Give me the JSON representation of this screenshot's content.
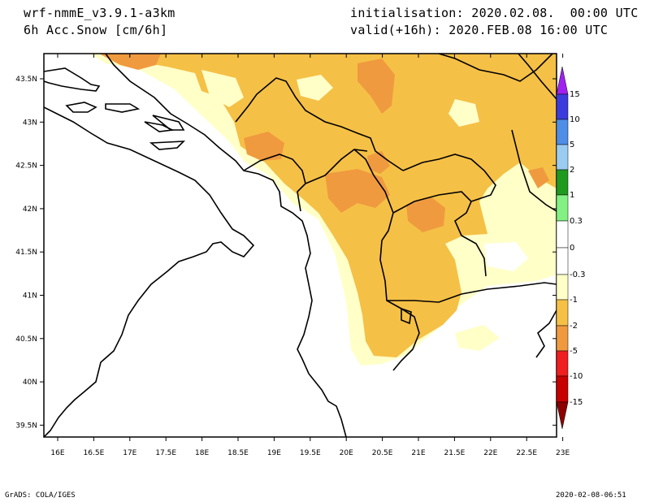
{
  "header": {
    "model": "wrf-nmmE_v3.9.1-a3km",
    "field": "6h Acc.Snow [cm/6h]",
    "init": "initialisation: 2020.02.08.  00:00 UTC",
    "valid": "valid(+16h): 2020.FEB.08 16:00 UTC"
  },
  "footer": {
    "credit": "GrADS: COLA/IGES",
    "timestamp": "2020-02-08-06:51"
  },
  "map": {
    "lon_ticks": [
      "16E",
      "16.5E",
      "17E",
      "17.5E",
      "18E",
      "18.5E",
      "19E",
      "19.5E",
      "20E",
      "20.5E",
      "21E",
      "21.5E",
      "22E",
      "22.5E",
      "23E"
    ],
    "lat_ticks": [
      "43.5N",
      "43N",
      "42.5N",
      "42N",
      "41.5N",
      "41N",
      "40.5N",
      "40N",
      "39.5N"
    ]
  },
  "legend": {
    "labels": [
      "15",
      "10",
      "5",
      "2",
      "1",
      "0.3",
      "0",
      "-0.3",
      "-1",
      "-2",
      "-5",
      "-10",
      "-15"
    ],
    "colors": {
      "top_arrow": "#a020f0",
      "c15": "#3c3cdc",
      "c10": "#4e8ee6",
      "c5": "#9acbf0",
      "c2": "#1e9a1e",
      "c1": "#82f082",
      "c03pos": "#ffffff",
      "c03neg": "#ffffff",
      "cm03": "#ffffc8",
      "cm1": "#f5c046",
      "cm2": "#f09a40",
      "cm5": "#f01e1e",
      "cm10": "#c80000",
      "cm15": "#8c0000"
    }
  },
  "colors": {
    "light_yellow": "#ffffc8",
    "orange_light": "#f5c046",
    "orange_dark": "#f09a40"
  }
}
